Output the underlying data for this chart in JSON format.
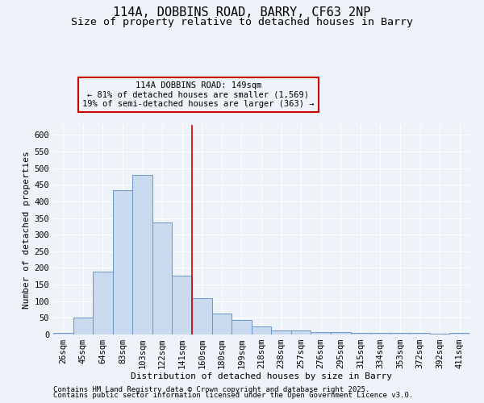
{
  "title": "114A, DOBBINS ROAD, BARRY, CF63 2NP",
  "subtitle": "Size of property relative to detached houses in Barry",
  "xlabel": "Distribution of detached houses by size in Barry",
  "ylabel": "Number of detached properties",
  "bar_labels": [
    "26sqm",
    "45sqm",
    "64sqm",
    "83sqm",
    "103sqm",
    "122sqm",
    "141sqm",
    "160sqm",
    "180sqm",
    "199sqm",
    "218sqm",
    "238sqm",
    "257sqm",
    "276sqm",
    "295sqm",
    "315sqm",
    "334sqm",
    "353sqm",
    "372sqm",
    "392sqm",
    "411sqm"
  ],
  "bar_values": [
    5,
    50,
    190,
    433,
    480,
    337,
    177,
    108,
    62,
    43,
    24,
    11,
    11,
    7,
    7,
    5,
    4,
    4,
    5,
    3,
    4
  ],
  "bar_color": "#c9daee",
  "bar_edge_color": "#6a96c8",
  "vline_pos": 6.5,
  "vline_color": "#cc0000",
  "annotation_text": "114A DOBBINS ROAD: 149sqm\n← 81% of detached houses are smaller (1,569)\n19% of semi-detached houses are larger (363) →",
  "ylim": [
    0,
    630
  ],
  "yticks": [
    0,
    50,
    100,
    150,
    200,
    250,
    300,
    350,
    400,
    450,
    500,
    550,
    600
  ],
  "footer1": "Contains HM Land Registry data © Crown copyright and database right 2025.",
  "footer2": "Contains public sector information licensed under the Open Government Licence v3.0.",
  "bg_color": "#eef2f9",
  "grid_color": "#ffffff",
  "title_fontsize": 11,
  "subtitle_fontsize": 9.5,
  "axis_label_fontsize": 8,
  "tick_fontsize": 7.5,
  "annotation_fontsize": 7.5,
  "footer_fontsize": 6.5
}
